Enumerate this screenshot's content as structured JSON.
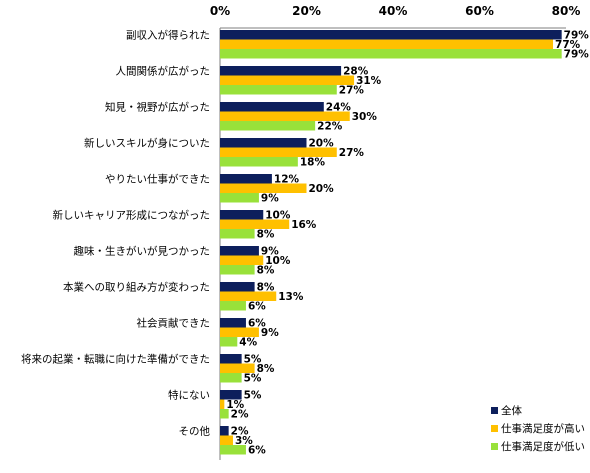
{
  "chart_data": {
    "type": "bar",
    "orientation": "horizontal",
    "xlim": [
      0,
      80
    ],
    "x_ticks": [
      "0%",
      "20%",
      "40%",
      "60%",
      "80%"
    ],
    "grid": false,
    "legend_position": "bottom-right",
    "categories": [
      "副収入が得られた",
      "人間関係が広がった",
      "知見・視野が広がった",
      "新しいスキルが身についた",
      "やりたい仕事ができた",
      "新しいキャリア形成につながった",
      "趣味・生きがいが見つかった",
      "本業への取り組み方が変わった",
      "社会貢献できた",
      "将来の起業・転職に向けた準備ができた",
      "特にない",
      "その他"
    ],
    "series": [
      {
        "name": "全体",
        "color": "#0d1f5c",
        "values": [
          79,
          28,
          24,
          20,
          12,
          10,
          9,
          8,
          6,
          5,
          5,
          2
        ],
        "labels": [
          "79%",
          "28%",
          "24%",
          "20%",
          "12%",
          "10%",
          "9%",
          "8%",
          "6%",
          "5%",
          "5%",
          "2%"
        ]
      },
      {
        "name": "仕事満足度が高い",
        "color": "#ffc000",
        "values": [
          77,
          31,
          30,
          27,
          20,
          16,
          10,
          13,
          9,
          8,
          1,
          3
        ],
        "labels": [
          "77%",
          "31%",
          "30%",
          "27%",
          "20%",
          "16%",
          "10%",
          "13%",
          "9%",
          "8%",
          "1%",
          "3%"
        ]
      },
      {
        "name": "仕事満足度が低い",
        "color": "#99e13a",
        "values": [
          79,
          27,
          22,
          18,
          9,
          8,
          8,
          6,
          4,
          5,
          2,
          6
        ],
        "labels": [
          "79%",
          "27%",
          "22%",
          "18%",
          "9%",
          "8%",
          "8%",
          "6%",
          "4%",
          "5%",
          "2%",
          "6%"
        ]
      }
    ]
  }
}
